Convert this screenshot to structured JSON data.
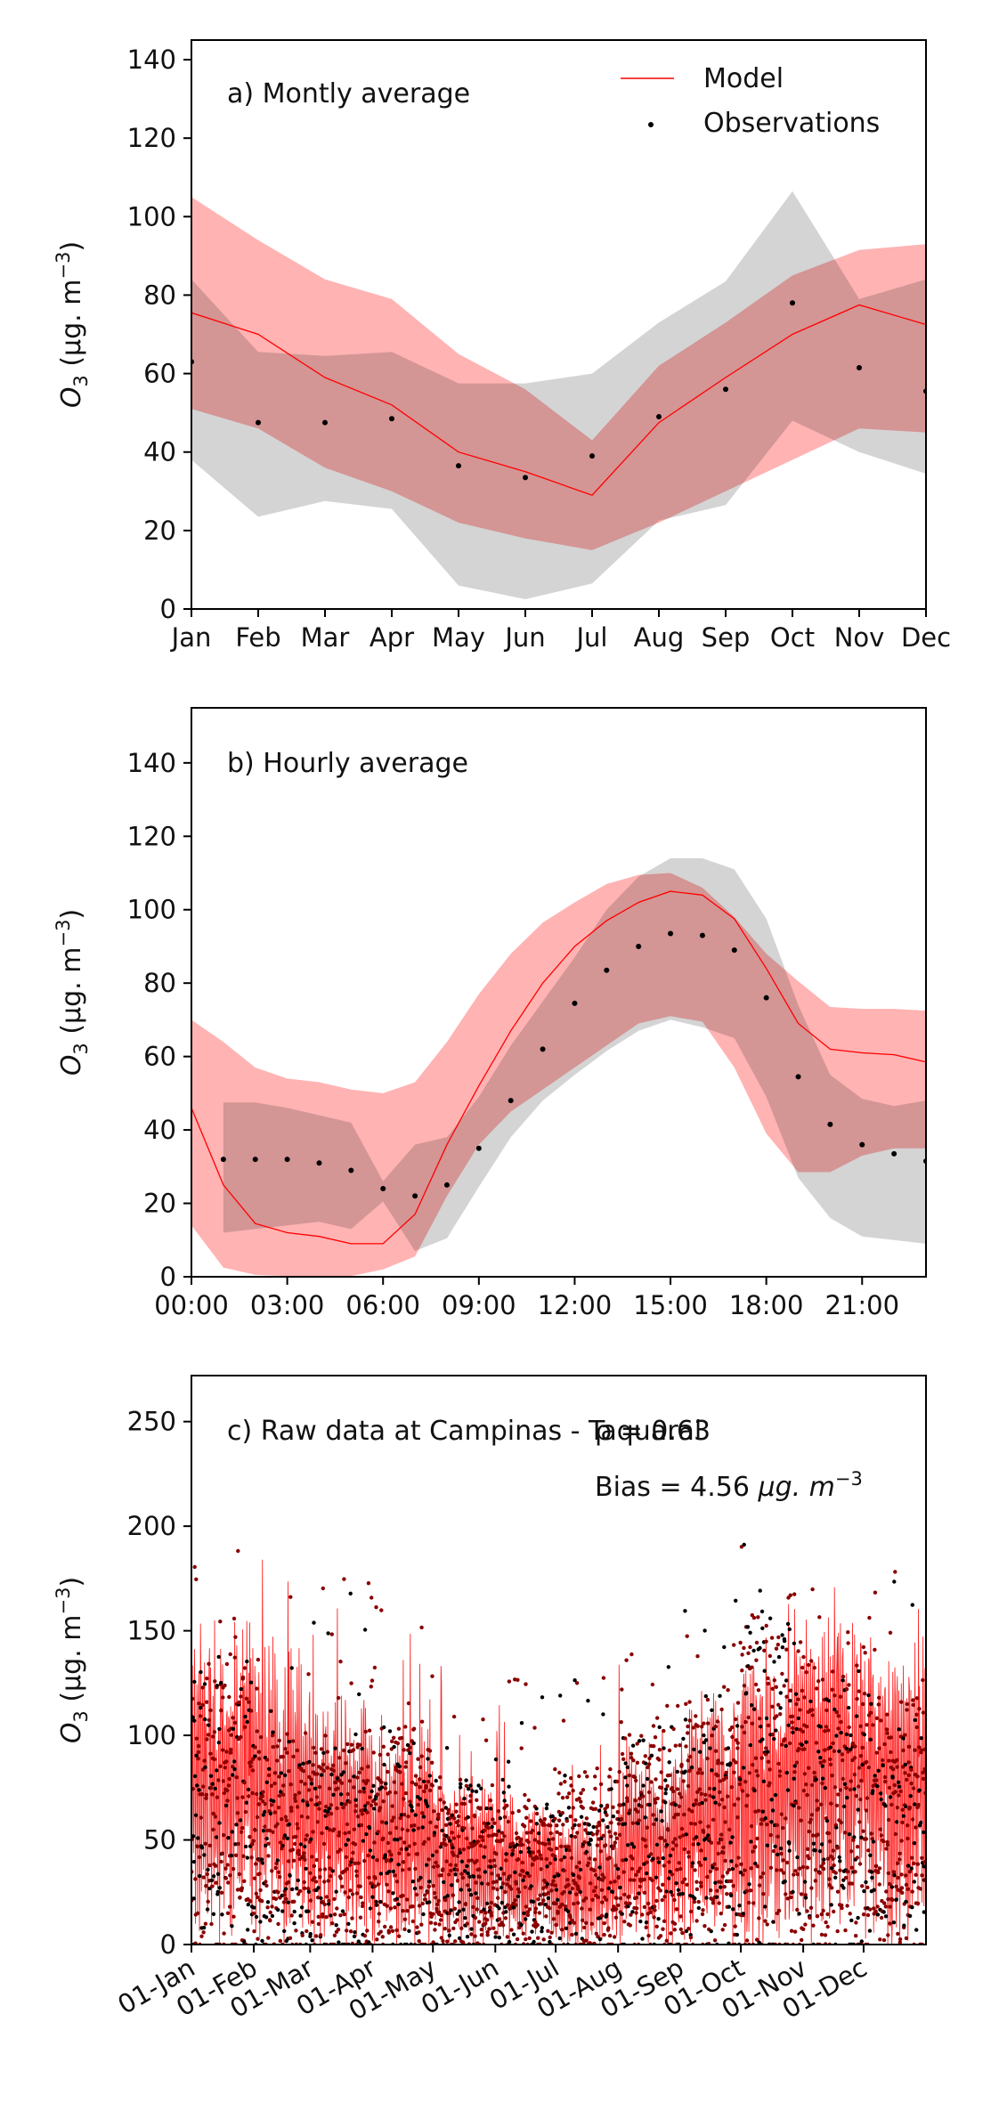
{
  "chart_data": [
    {
      "type": "line",
      "panel_label": "a) Montly average",
      "ylabel": "O3 (µg.m−3)",
      "ylabel_parts": {
        "base": "O",
        "sub": "3",
        "unit": "(μg. m",
        "sup": "−3",
        "close": ")"
      },
      "ylim": [
        0,
        145
      ],
      "yticks": [
        0,
        20,
        40,
        60,
        80,
        100,
        120,
        140
      ],
      "x": [
        1,
        2,
        3,
        4,
        5,
        6,
        7,
        8,
        9,
        10,
        11,
        12
      ],
      "xticklabels": [
        "Jan",
        "Feb",
        "Mar",
        "Apr",
        "May",
        "Jun",
        "Jul",
        "Aug",
        "Sep",
        "Oct",
        "Nov",
        "Dec"
      ],
      "legend": {
        "position": "top-right",
        "entries": [
          "Model",
          "Observations"
        ]
      },
      "series": [
        {
          "name": "Model",
          "kind": "line",
          "color": "#ff0000",
          "values": [
            75.5,
            70,
            59,
            52,
            40,
            35,
            29,
            47.5,
            59,
            70,
            77.5,
            72.5
          ]
        },
        {
          "name": "Observations",
          "kind": "points",
          "color": "#000000",
          "values": [
            63,
            47.5,
            47.5,
            48.5,
            36.5,
            33.5,
            39,
            49,
            56,
            78,
            61.5,
            55.5
          ]
        }
      ],
      "bands": [
        {
          "of": "Model",
          "color": "#ff8080",
          "lower": [
            51,
            46,
            36,
            30,
            22,
            18,
            15,
            22,
            30,
            38,
            46,
            45
          ],
          "upper": [
            105,
            94,
            84,
            79,
            65,
            56,
            43,
            62,
            73,
            85,
            91.5,
            93
          ]
        },
        {
          "of": "Observations",
          "color": "#b0b0b0",
          "lower": [
            38,
            23.5,
            27.5,
            25.5,
            6,
            2.5,
            6.5,
            22.5,
            26.5,
            48,
            40,
            34.5
          ],
          "upper": [
            84,
            65.5,
            64.5,
            65.5,
            57.5,
            57.5,
            60,
            73,
            83.5,
            106.5,
            79,
            84
          ]
        }
      ]
    },
    {
      "type": "line",
      "panel_label": "b) Hourly average",
      "ylabel": "O3 (µg.m−3)",
      "ylim": [
        0,
        155
      ],
      "yticks": [
        0,
        20,
        40,
        60,
        80,
        100,
        120,
        140
      ],
      "x": [
        0,
        1,
        2,
        3,
        4,
        5,
        6,
        7,
        8,
        9,
        10,
        11,
        12,
        13,
        14,
        15,
        16,
        17,
        18,
        19,
        20,
        21,
        22,
        23
      ],
      "xticks": [
        0,
        3,
        6,
        9,
        12,
        15,
        18,
        21
      ],
      "xticklabels": [
        "00:00",
        "03:00",
        "06:00",
        "09:00",
        "12:00",
        "15:00",
        "18:00",
        "21:00"
      ],
      "series": [
        {
          "name": "Model",
          "kind": "line",
          "color": "#ff0000",
          "values": [
            46,
            25,
            14.5,
            12,
            11,
            9,
            9,
            17,
            36,
            52,
            67,
            80,
            90,
            97,
            102,
            105,
            104,
            97.5,
            84,
            69,
            62,
            61,
            60.5,
            58.5
          ]
        },
        {
          "name": "Observations",
          "kind": "points",
          "color": "#000000",
          "values": [
            null,
            32,
            32,
            32,
            31,
            29,
            24,
            22,
            25,
            35,
            48,
            62,
            74.5,
            83.5,
            90,
            93.5,
            93,
            89,
            76,
            54.5,
            41.5,
            36,
            33.5,
            31.5
          ]
        }
      ],
      "bands": [
        {
          "of": "Model",
          "color": "#ff8080",
          "lower": [
            14,
            2.5,
            0.5,
            0.2,
            0.2,
            0.2,
            2,
            5.5,
            22,
            36,
            45,
            51,
            57,
            63,
            69,
            71,
            69.5,
            57,
            39,
            28.5,
            28.5,
            33,
            35,
            35
          ],
          "upper": [
            70,
            64,
            57,
            54,
            53,
            51,
            50,
            53,
            64,
            77,
            88,
            96.5,
            102,
            107,
            109.5,
            110,
            106,
            98,
            88,
            80.5,
            73.5,
            73,
            73,
            72.5
          ]
        },
        {
          "of": "Observations",
          "color": "#b0b0b0",
          "lower": [
            null,
            12,
            13,
            14,
            15,
            13,
            20.5,
            7,
            10.5,
            24.5,
            38,
            48,
            55,
            61.5,
            67,
            70,
            68,
            65,
            49,
            27,
            16,
            11,
            10,
            9
          ],
          "upper": [
            null,
            47.5,
            47.5,
            46,
            44,
            42,
            26,
            36,
            38,
            49,
            63,
            75,
            87,
            100,
            109,
            114,
            114,
            111,
            97.5,
            74,
            55,
            48.5,
            46.5,
            48
          ]
        }
      ]
    },
    {
      "type": "line",
      "panel_label": "c) Raw data at Campinas - Taquaral",
      "stats": [
        "ρ = 0.63",
        "Bias = 4.56 μg. m−3"
      ],
      "stat_rho": "ρ = 0.63",
      "stat_bias": {
        "text": "Bias = 4.56 ",
        "unit": "μg. m",
        "sup": "−3"
      },
      "ylabel": "O3 (µg.m−3)",
      "ylim": [
        0,
        272
      ],
      "yticks": [
        0,
        50,
        100,
        150,
        200,
        250
      ],
      "xlim": [
        0,
        365
      ],
      "xticks": [
        0,
        31,
        59,
        90,
        120,
        151,
        181,
        212,
        243,
        273,
        304,
        334
      ],
      "xticklabels": [
        "01-Jan",
        "01-Feb",
        "01-Mar",
        "01-Apr",
        "01-May",
        "01-Jun",
        "01-Jul",
        "01-Aug",
        "01-Sep",
        "01-Oct",
        "01-Nov",
        "01-Dec"
      ],
      "series": [
        {
          "name": "Model",
          "kind": "line",
          "color": "#ff0000",
          "note": "hourly values, monthly ranges follow",
          "monthly_mean": [
            75.5,
            70,
            59,
            52,
            40,
            35,
            29,
            47.5,
            59,
            70,
            77.5,
            72.5
          ],
          "monthly_max": [
            195,
            185,
            165,
            160,
            140,
            120,
            105,
            135,
            150,
            175,
            175,
            180
          ]
        },
        {
          "name": "Observations",
          "kind": "points",
          "color": "#000000",
          "monthly_mean": [
            63,
            47.5,
            47.5,
            48.5,
            36.5,
            33.5,
            39,
            49,
            56,
            78,
            61.5,
            55.5
          ],
          "monthly_max": [
            192,
            178,
            178,
            166,
            130,
            128,
            131,
            150,
            165,
            192,
            170,
            188
          ]
        }
      ]
    }
  ]
}
